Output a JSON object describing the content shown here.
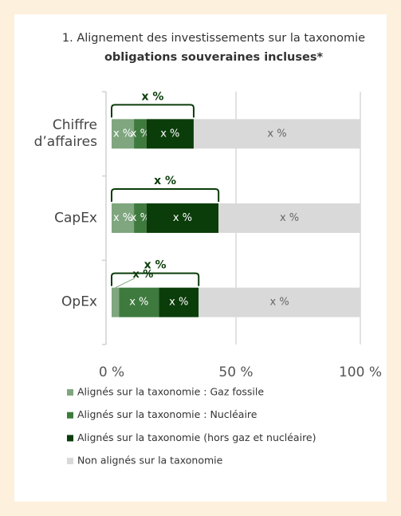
{
  "chart_data": {
    "type": "stacked-barh",
    "title": "1. Alignement des investissements sur la taxonomie",
    "subtitle": "obligations souveraines incluses*",
    "categories": [
      "Chiffre d’affaires",
      "CapEx",
      "OpEx"
    ],
    "series": [
      {
        "name": "Alignés sur la taxonomie : Gaz fossile",
        "color": "#7fa67f",
        "values": [
          9,
          9,
          3
        ],
        "value_labels": [
          "x %",
          "x %",
          "x %"
        ]
      },
      {
        "name": "Alignés sur la taxonomie : Nucléaire",
        "color": "#3e7a3e",
        "values": [
          5,
          5,
          16
        ],
        "value_labels": [
          "x %",
          "x %",
          "x %"
        ]
      },
      {
        "name": "Alignés sur la taxonomie (hors gaz et nucléaire)",
        "color": "#0b3d0b",
        "values": [
          19,
          29,
          16
        ],
        "value_labels": [
          "x %",
          "x %",
          "x %"
        ]
      },
      {
        "name": "Non alignés sur la taxonomie",
        "color": "#d9d9d9",
        "values": [
          67,
          57,
          65
        ],
        "value_labels": [
          "x %",
          "x %",
          "x %"
        ]
      }
    ],
    "totals": {
      "values": [
        33,
        43,
        35
      ],
      "value_labels": [
        "x %",
        "x %",
        "x %"
      ]
    },
    "xlim": [
      0,
      100
    ],
    "xticks": [
      {
        "value": 0,
        "label": "0 %"
      },
      {
        "value": 50,
        "label": "50 %"
      },
      {
        "value": 100,
        "label": "100 %"
      }
    ],
    "grid": true
  }
}
